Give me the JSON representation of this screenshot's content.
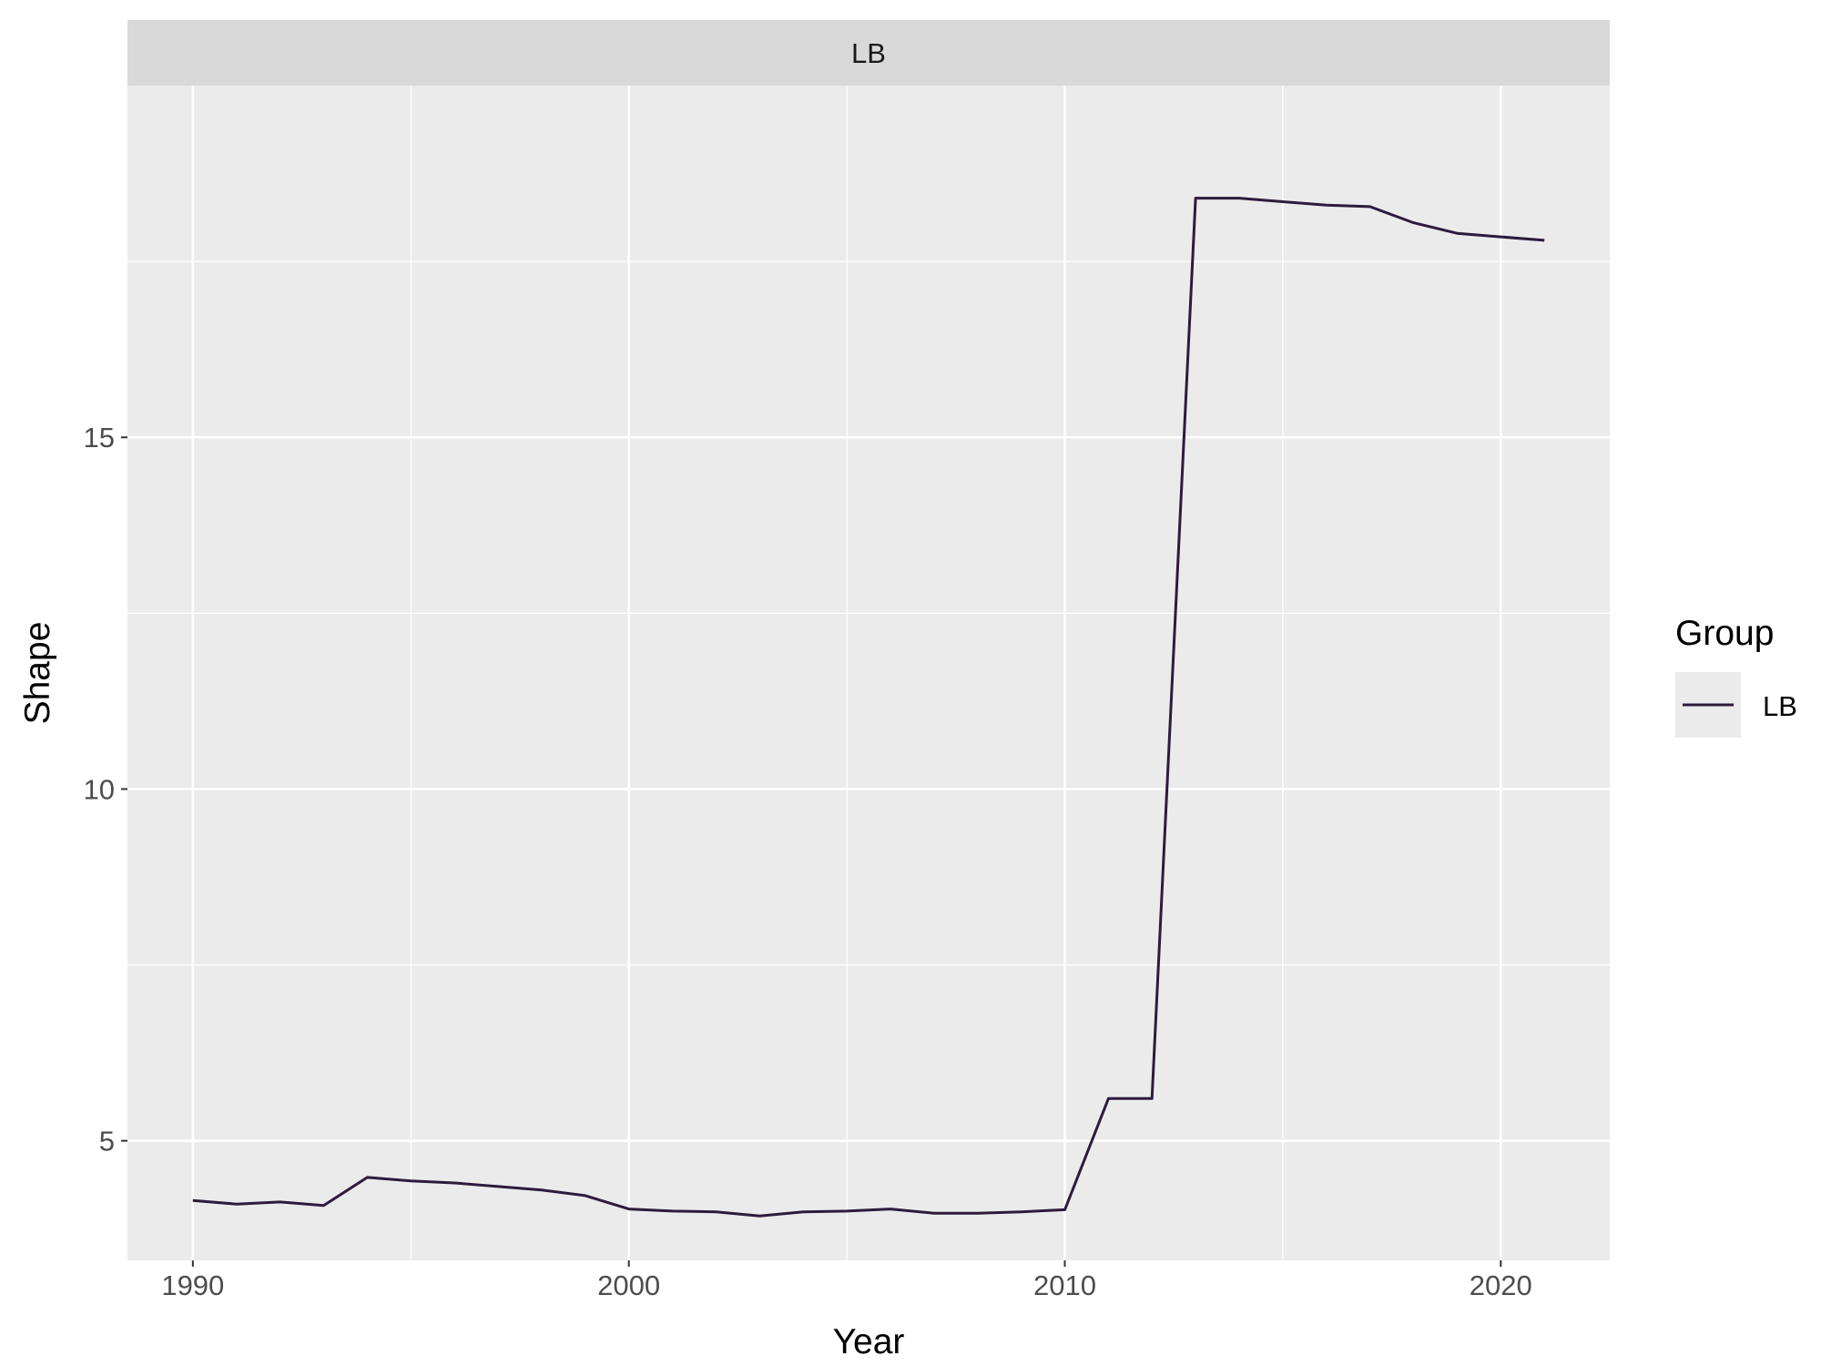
{
  "chart_data": {
    "type": "line",
    "facet_label": "LB",
    "xlabel": "Year",
    "ylabel": "Shape",
    "xlim": [
      1988.5,
      2022.5
    ],
    "ylim": [
      3.3,
      20.0
    ],
    "x_ticks": [
      1990,
      2000,
      2010,
      2020
    ],
    "x_minor_ticks": [
      1995,
      2005,
      2015
    ],
    "y_ticks": [
      5,
      10,
      15
    ],
    "y_minor_ticks": [
      7.5,
      12.5,
      17.5
    ],
    "grid": true,
    "legend": {
      "title": "Group",
      "position": "right",
      "entries": [
        "LB"
      ]
    },
    "series": [
      {
        "name": "LB",
        "color": "#2d1b3d",
        "x": [
          1990,
          1991,
          1992,
          1993,
          1994,
          1995,
          1996,
          1997,
          1998,
          1999,
          2000,
          2001,
          2002,
          2003,
          2004,
          2005,
          2006,
          2007,
          2008,
          2009,
          2010,
          2011,
          2012,
          2013,
          2014,
          2015,
          2016,
          2017,
          2018,
          2019,
          2020,
          2021
        ],
        "values": [
          4.15,
          4.1,
          4.13,
          4.08,
          4.48,
          4.43,
          4.4,
          4.35,
          4.3,
          4.22,
          4.03,
          4.0,
          3.99,
          3.93,
          3.99,
          4.0,
          4.03,
          3.97,
          3.97,
          3.99,
          4.02,
          5.6,
          5.6,
          18.4,
          18.4,
          18.35,
          18.3,
          18.28,
          18.05,
          17.9,
          17.85,
          17.8
        ]
      }
    ]
  }
}
